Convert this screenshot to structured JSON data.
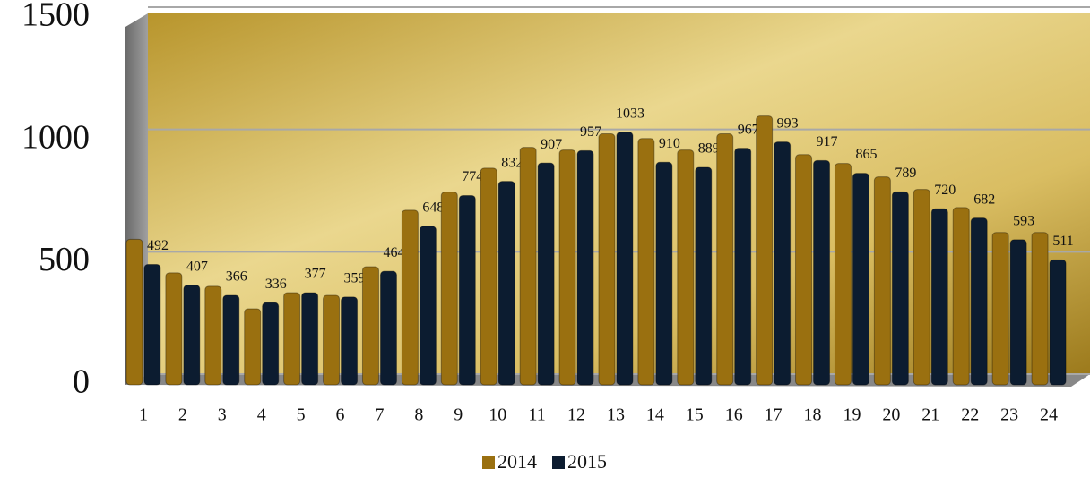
{
  "chart_data": {
    "type": "bar",
    "categories": [
      "1",
      "2",
      "3",
      "4",
      "5",
      "6",
      "7",
      "8",
      "9",
      "10",
      "11",
      "12",
      "13",
      "14",
      "15",
      "16",
      "17",
      "18",
      "19",
      "20",
      "21",
      "22",
      "23",
      "24"
    ],
    "series": [
      {
        "name": "2014",
        "color": "#9a7010",
        "values": [
          595,
          458,
          403,
          311,
          377,
          366,
          483,
          714,
          788,
          886,
          971,
          960,
          1026,
          1007,
          960,
          1026,
          1099,
          941,
          905,
          850,
          799,
          725,
          623,
          623
        ]
      },
      {
        "name": "2015",
        "color": "#0c1c30",
        "values": [
          492,
          407,
          366,
          336,
          377,
          359,
          464,
          648,
          774,
          832,
          907,
          957,
          1033,
          910,
          889,
          967,
          993,
          917,
          865,
          789,
          720,
          682,
          593,
          511
        ]
      }
    ],
    "ylim": [
      0,
      1500
    ],
    "yticks": [
      0,
      500,
      1000,
      1500
    ],
    "grid": true,
    "legend": "bottom"
  }
}
